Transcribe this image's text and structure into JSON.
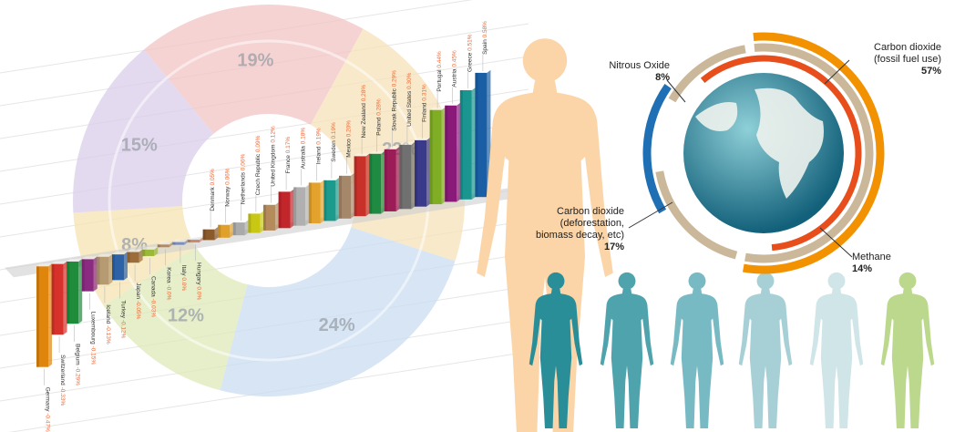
{
  "donut": {
    "segments": [
      {
        "label": "19%",
        "value": 19,
        "color": "#f3c4c4"
      },
      {
        "label": "22%",
        "value": 22,
        "color": "#f5e2b8"
      },
      {
        "label": "24%",
        "value": 24,
        "color": "#c9dcf0"
      },
      {
        "label": "12%",
        "value": 12,
        "color": "#dfe9b8"
      },
      {
        "label": "8%",
        "value": 8,
        "color": "#f6e3b0"
      },
      {
        "label": "15%",
        "value": 15,
        "color": "#d9cdea"
      }
    ]
  },
  "chart_data": {
    "type": "bar",
    "title": "",
    "xlabel": "",
    "ylabel": "",
    "categories": [
      "Germany",
      "Switzerland",
      "Belgium",
      "Luxembourg",
      "Iceland",
      "Turkey",
      "Japan",
      "Canada",
      "Korea",
      "Italy",
      "Hungary",
      "Denmark",
      "Norway",
      "Netherlands",
      "Czech Republic",
      "United Kingdom",
      "France",
      "Australia",
      "Ireland",
      "Sweden",
      "Mexico",
      "New Zealand",
      "Poland",
      "Slovak Republic",
      "United States",
      "Finland",
      "Portugal",
      "Austria",
      "Greece",
      "Spain"
    ],
    "values": [
      -0.47,
      -0.33,
      -0.29,
      -0.15,
      -0.13,
      -0.12,
      -0.05,
      -0.03,
      -0.0,
      0.0,
      0.0,
      0.05,
      0.06,
      0.06,
      0.09,
      0.12,
      0.17,
      0.18,
      0.19,
      0.19,
      0.2,
      0.28,
      0.28,
      0.29,
      0.3,
      0.31,
      0.44,
      0.45,
      0.51,
      0.58
    ],
    "value_labels": [
      "-0.47%",
      "-0.33%",
      "-0.29%",
      "-0.15%",
      "-0.13%",
      "-0.12%",
      "-0.05%",
      "-0.03%",
      "-0.0%",
      "0.0%",
      "0.0%",
      "0.05%",
      "0.06%",
      "0.06%",
      "0.09%",
      "0.12%",
      "0.17%",
      "0.18%",
      "0.19%",
      "0.19%",
      "0.20%",
      "0.28%",
      "0.28%",
      "0.29%",
      "0.30%",
      "0.31%",
      "0.44%",
      "0.45%",
      "0.51%",
      "0.58%"
    ],
    "colors": [
      "#e0850c",
      "#d6312b",
      "#1e8c3a",
      "#8a2a80",
      "#b59a72",
      "#2d63a6",
      "#9c6c3a",
      "#9bb83a",
      "#b08a66",
      "#7a8fc0",
      "#c98a70",
      "#8b5a2b",
      "#e0a02a",
      "#aaaaaa",
      "#c8c814",
      "#b58b5c",
      "#c2252a",
      "#b0b0b0",
      "#e3a22c",
      "#1c9b8d",
      "#a5876a",
      "#c8302a",
      "#1e8a42",
      "#9c1c58",
      "#707070",
      "#3a3a8a",
      "#7fae24",
      "#8a1a7a",
      "#1a9590",
      "#1a5fa6"
    ],
    "ylim": [
      -0.5,
      0.6
    ]
  },
  "emissions": {
    "items": [
      {
        "name": "Carbon dioxide\n(fossil fuel use)",
        "line1": "Carbon dioxide",
        "line2": "(fossil fuel use)",
        "pct": "57%",
        "value": 57,
        "color": "#f39200"
      },
      {
        "name": "Nitrous Oxide",
        "line1": "Nitrous Oxide",
        "pct": "8%",
        "value": 8,
        "color": "#cbb89a"
      },
      {
        "name": "Carbon dioxide (deforestation, biomass decay, etc)",
        "line1": "Carbon dioxide",
        "line2": "(deforestation,",
        "line3": "biomass decay, etc)",
        "pct": "17%",
        "value": 17,
        "color": "#1f6fb5"
      },
      {
        "name": "Methane",
        "line1": "Methane",
        "pct": "14%",
        "value": 14,
        "color": "#e84e1b"
      }
    ]
  },
  "figures": {
    "big_color": "#fbd4a8",
    "small_colors": [
      "#2a8e99",
      "#4ea3ad",
      "#78bac3",
      "#a6d0d6",
      "#d0e5e8",
      "#bcd88c"
    ]
  }
}
